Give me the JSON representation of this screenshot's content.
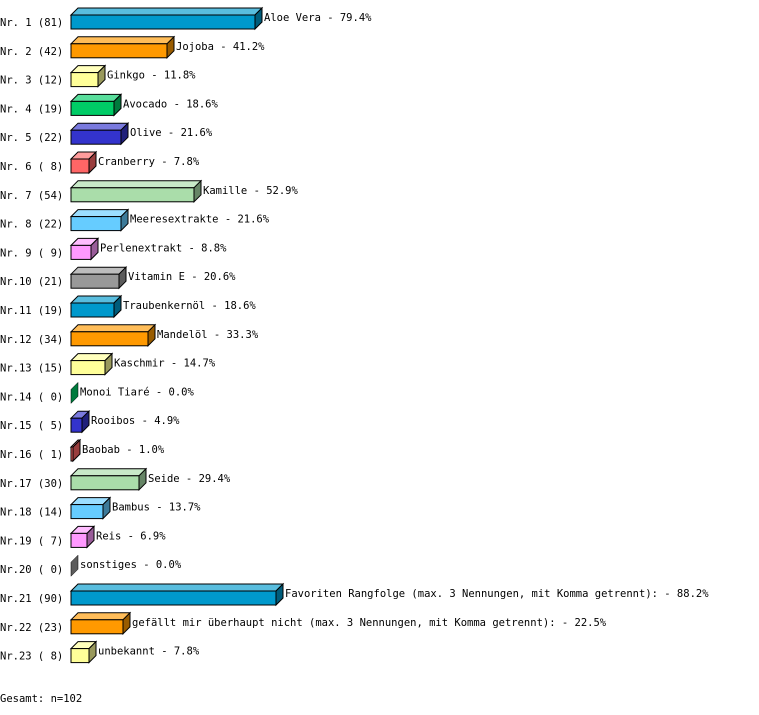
{
  "chart_data": {
    "type": "bar",
    "orientation": "horizontal",
    "style": "3d",
    "rows": [
      {
        "rank": "Nr. 1",
        "count": "(81)",
        "label": "Aloe Vera",
        "percent": 79.4,
        "color": "#0099cc"
      },
      {
        "rank": "Nr. 2",
        "count": "(42)",
        "label": "Jojoba",
        "percent": 41.2,
        "color": "#ff9900"
      },
      {
        "rank": "Nr. 3",
        "count": "(12)",
        "label": "Ginkgo",
        "percent": 11.8,
        "color": "#ffff99"
      },
      {
        "rank": "Nr. 4",
        "count": "(19)",
        "label": "Avocado",
        "percent": 18.6,
        "color": "#00cc66"
      },
      {
        "rank": "Nr. 5",
        "count": "(22)",
        "label": "Olive",
        "percent": 21.6,
        "color": "#3333cc"
      },
      {
        "rank": "Nr. 6",
        "count": "( 8)",
        "label": "Cranberry",
        "percent": 7.8,
        "color": "#ff6666"
      },
      {
        "rank": "Nr. 7",
        "count": "(54)",
        "label": "Kamille",
        "percent": 52.9,
        "color": "#aaddaa"
      },
      {
        "rank": "Nr. 8",
        "count": "(22)",
        "label": "Meeresextrakte",
        "percent": 21.6,
        "color": "#66ccff"
      },
      {
        "rank": "Nr. 9",
        "count": "( 9)",
        "label": "Perlenextrakt",
        "percent": 8.8,
        "color": "#ff99ff"
      },
      {
        "rank": "Nr.10",
        "count": "(21)",
        "label": "Vitamin E",
        "percent": 20.6,
        "color": "#999999"
      },
      {
        "rank": "Nr.11",
        "count": "(19)",
        "label": "Traubenkernöl",
        "percent": 18.6,
        "color": "#0099cc"
      },
      {
        "rank": "Nr.12",
        "count": "(34)",
        "label": "Mandelöl",
        "percent": 33.3,
        "color": "#ff9900"
      },
      {
        "rank": "Nr.13",
        "count": "(15)",
        "label": "Kaschmir",
        "percent": 14.7,
        "color": "#ffff99"
      },
      {
        "rank": "Nr.14",
        "count": "( 0)",
        "label": "Monoi Tiaré",
        "percent": 0.0,
        "color": "#00cc66"
      },
      {
        "rank": "Nr.15",
        "count": "( 5)",
        "label": "Rooibos",
        "percent": 4.9,
        "color": "#3333cc"
      },
      {
        "rank": "Nr.16",
        "count": "( 1)",
        "label": "Baobab",
        "percent": 1.0,
        "color": "#ff6666"
      },
      {
        "rank": "Nr.17",
        "count": "(30)",
        "label": "Seide",
        "percent": 29.4,
        "color": "#aaddaa"
      },
      {
        "rank": "Nr.18",
        "count": "(14)",
        "label": "Bambus",
        "percent": 13.7,
        "color": "#66ccff"
      },
      {
        "rank": "Nr.19",
        "count": "( 7)",
        "label": "Reis",
        "percent": 6.9,
        "color": "#ff99ff"
      },
      {
        "rank": "Nr.20",
        "count": "( 0)",
        "label": "sonstiges",
        "percent": 0.0,
        "color": "#999999"
      },
      {
        "rank": "Nr.21",
        "count": "(90)",
        "label": "Favoriten Rangfolge (max. 3 Nennungen, mit Komma getrennt):",
        "percent": 88.2,
        "color": "#0099cc"
      },
      {
        "rank": "Nr.22",
        "count": "(23)",
        "label": "gefällt mir überhaupt nicht (max. 3 Nennungen, mit Komma getrennt):",
        "percent": 22.5,
        "color": "#ff9900"
      },
      {
        "rank": "Nr.23",
        "count": "( 8)",
        "label": "unbekannt",
        "percent": 7.8,
        "color": "#ffff99"
      }
    ],
    "footer": "Gesamt: n=102"
  }
}
